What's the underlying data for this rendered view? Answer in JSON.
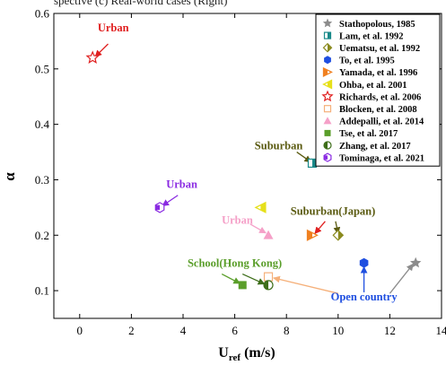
{
  "caption_fragment": "spective (c) Real-world cases (Right)",
  "chart_data": {
    "type": "scatter",
    "xlabel_main": "U",
    "xlabel_sub": "ref",
    "xlabel_unit": " (m/s)",
    "ylabel": "α",
    "xlim": [
      -1,
      14
    ],
    "ylim": [
      0.05,
      0.6
    ],
    "xticks": [
      0,
      2,
      4,
      6,
      8,
      10,
      12,
      14
    ],
    "yticks": [
      0.1,
      0.2,
      0.3,
      0.4,
      0.5,
      0.6
    ],
    "xtick_labels": [
      "0",
      "2",
      "4",
      "6",
      "8",
      "10",
      "12",
      "14"
    ],
    "ytick_labels": [
      "0.1",
      "0.2",
      "0.3",
      "0.4",
      "0.5",
      "0.6"
    ],
    "grid": false,
    "legend_position": "top-right",
    "series": [
      {
        "name": "Stathopolous, 1985",
        "marker": "star",
        "color": "#8c8c8c",
        "points": [
          [
            13.0,
            0.15
          ]
        ]
      },
      {
        "name": "Lam, et al. 1992",
        "marker": "square-half",
        "color": "#1a8a8a",
        "points": [
          [
            9.0,
            0.33
          ]
        ]
      },
      {
        "name": "Uematsu, et al. 1992",
        "marker": "diamond-half",
        "color": "#8a8a1e",
        "points": [
          [
            10.0,
            0.2
          ]
        ]
      },
      {
        "name": "To, et al. 1995",
        "marker": "hexagon",
        "color": "#1f4fe0",
        "points": [
          [
            11.0,
            0.15
          ]
        ]
      },
      {
        "name": "Yamada, et al. 1996",
        "marker": "triangle-right",
        "color": "#f08020",
        "points": [
          [
            9.0,
            0.2
          ]
        ]
      },
      {
        "name": "Ohba, et al. 2001",
        "marker": "triangle-left",
        "color": "#e6e01a",
        "points": [
          [
            7.0,
            0.25
          ]
        ]
      },
      {
        "name": "Richards, et al. 2006",
        "marker": "star-open",
        "color": "#e02020",
        "points": [
          [
            0.5,
            0.52
          ]
        ]
      },
      {
        "name": "Blocken, et al. 2008",
        "marker": "square-open",
        "color": "#f5b07a",
        "points": [
          [
            7.3,
            0.125
          ]
        ]
      },
      {
        "name": "Addepalli, et al. 2014",
        "marker": "triangle-up",
        "color": "#f5a0c8",
        "points": [
          [
            7.3,
            0.2
          ]
        ]
      },
      {
        "name": "Tse, et al. 2017",
        "marker": "square",
        "color": "#5a9e2a",
        "points": [
          [
            6.3,
            0.11
          ]
        ]
      },
      {
        "name": "Zhang, et al. 2017",
        "marker": "circle-half",
        "color": "#3e6e1a",
        "points": [
          [
            7.3,
            0.11
          ]
        ]
      },
      {
        "name": "Tominaga, et al. 2021",
        "marker": "hexagon-half",
        "color": "#8a2be2",
        "points": [
          [
            3.1,
            0.25
          ]
        ]
      }
    ],
    "annotations": [
      {
        "text": "Urban",
        "color": "#e02020",
        "at": [
          1.3,
          0.568
        ],
        "arrow_from": [
          1.1,
          0.545
        ],
        "arrow_to": [
          0.6,
          0.522
        ]
      },
      {
        "text": "Suburban",
        "color": "#5a5a10",
        "at": [
          7.7,
          0.355
        ],
        "arrow_from": [
          8.4,
          0.35
        ],
        "arrow_to": [
          8.95,
          0.332
        ]
      },
      {
        "text": "Urban",
        "color": "#8a2be2",
        "at": [
          3.95,
          0.285
        ],
        "arrow_from": [
          3.8,
          0.272
        ],
        "arrow_to": [
          3.2,
          0.253
        ]
      },
      {
        "text": "Urban",
        "color": "#f5a0c8",
        "at": [
          6.1,
          0.221
        ],
        "arrow_from": [
          6.6,
          0.22
        ],
        "arrow_to": [
          7.2,
          0.204
        ]
      },
      {
        "text": "Suburban(Japan)",
        "color": "#5a5a10",
        "at": [
          9.8,
          0.237
        ],
        "arrow_from": [
          9.5,
          0.225
        ],
        "arrow_to": [
          9.1,
          0.203
        ],
        "arrow_color": "#e02020"
      },
      {
        "text": "Suburban(Japan)",
        "color": "#5a5a10",
        "at": [
          9.8,
          0.237
        ],
        "arrow_from": [
          9.9,
          0.225
        ],
        "arrow_to": [
          10.0,
          0.203
        ],
        "arrow_color": "#5a5a10",
        "hide_text": true
      },
      {
        "text": "School(Hong Kong)",
        "color": "#5a9e2a",
        "at": [
          6.0,
          0.143
        ],
        "arrow_from": [
          5.5,
          0.13
        ],
        "arrow_to": [
          6.2,
          0.113
        ],
        "arrow_color": "#5a9e2a"
      },
      {
        "text": "School(Hong Kong)",
        "color": "#5a9e2a",
        "at": [
          6.0,
          0.143
        ],
        "arrow_from": [
          6.3,
          0.13
        ],
        "arrow_to": [
          7.15,
          0.112
        ],
        "arrow_color": "#3e6e1a",
        "hide_text": true
      },
      {
        "text": "Open country",
        "color": "#1f4fe0",
        "at": [
          11.0,
          0.082
        ],
        "arrow_from": [
          12.0,
          0.095
        ],
        "arrow_to": [
          12.9,
          0.148
        ],
        "arrow_color": "#8c8c8c",
        "hide_text": true
      },
      {
        "text": "Open country",
        "color": "#1f4fe0",
        "at": [
          11.0,
          0.082
        ],
        "arrow_from": [
          11.0,
          0.097
        ],
        "arrow_to": [
          11.0,
          0.143
        ],
        "arrow_color": "#1f4fe0",
        "hide_text": true
      },
      {
        "text": "Open country",
        "color": "#1f4fe0",
        "at": [
          11.0,
          0.082
        ],
        "arrow_from": [
          10.0,
          0.095
        ],
        "arrow_to": [
          7.5,
          0.123
        ],
        "arrow_color": "#f5b07a"
      }
    ]
  }
}
